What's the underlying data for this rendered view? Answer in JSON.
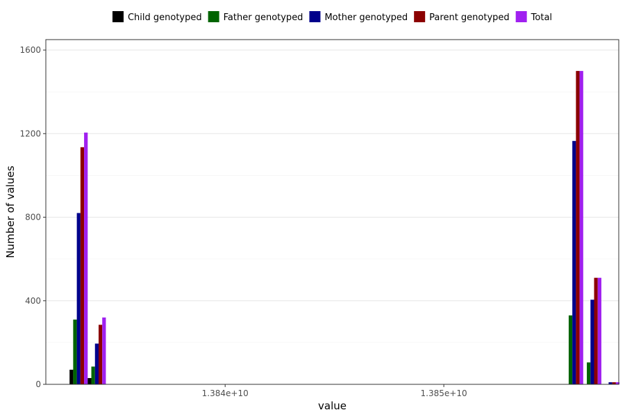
{
  "chart_data": {
    "type": "bar",
    "xlabel": "value",
    "ylabel": "Number of values",
    "ylim": [
      0,
      1650
    ],
    "y_ticks": [
      0,
      400,
      800,
      1200,
      1600
    ],
    "y_tick_labels": [
      "0",
      "400",
      "800",
      "1200",
      "1600"
    ],
    "xlim": [
      13831800000,
      13858000000
    ],
    "x_ticks": [
      13840000000,
      13850000000
    ],
    "x_tick_labels": [
      "1.384e+10",
      "1.385e+10"
    ],
    "bin_width": 830000,
    "grid": true,
    "legend_position": "top",
    "bins": [
      13833300000,
      13834130000,
      13855960000,
      13856790000,
      13857620000
    ],
    "series": [
      {
        "name": "Child genotyped",
        "color": "#000000",
        "values": [
          70,
          30,
          0,
          0,
          0
        ]
      },
      {
        "name": "Father genotyped",
        "color": "#006400",
        "values": [
          310,
          85,
          330,
          105,
          0
        ]
      },
      {
        "name": "Mother genotyped",
        "color": "#00008B",
        "values": [
          820,
          195,
          1165,
          405,
          10
        ]
      },
      {
        "name": "Parent genotyped",
        "color": "#8B0000",
        "values": [
          1135,
          285,
          1500,
          510,
          10
        ]
      },
      {
        "name": "Total",
        "color": "#A020F0",
        "values": [
          1205,
          320,
          1500,
          510,
          10
        ]
      }
    ]
  }
}
